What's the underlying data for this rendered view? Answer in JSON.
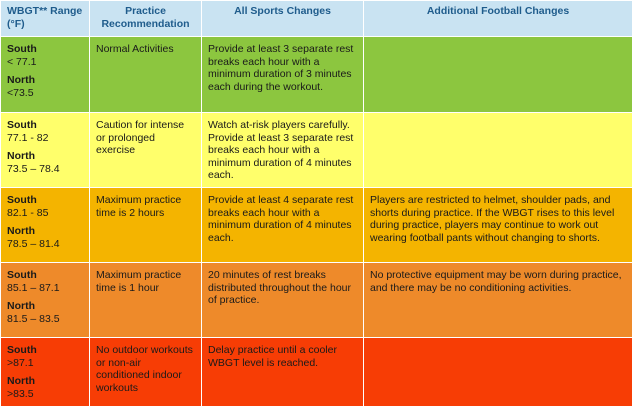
{
  "headers": {
    "range": "WBGT** Range (°F)",
    "practice": "Practice Recommendation",
    "all_sports": "All Sports Changes",
    "football": "Additional Football Changes"
  },
  "colors": {
    "header": "#c9e3f2",
    "header_text": "#1f5c8c",
    "green": "#8cc63f",
    "yellow": "#ffff6b",
    "amber": "#f4b400",
    "orange": "#ee8a2a",
    "red": "#f73d05"
  },
  "rows": [
    {
      "south_label": "South",
      "south_value": "< 77.1",
      "north_label": "North",
      "north_value": "<73.5",
      "practice": "Normal Activities",
      "all_sports": "Provide at least 3 separate rest breaks each hour with a minimum duration of 3 minutes each during the workout.",
      "football": ""
    },
    {
      "south_label": "South",
      "south_value": "77.1 - 82",
      "north_label": "North",
      "north_value": "73.5 – 78.4",
      "practice": "Caution for intense or prolonged exercise",
      "all_sports": "Watch at-risk players carefully. Provide at least 3 separate rest breaks each hour with a minimum duration of 4 minutes each.",
      "football": ""
    },
    {
      "south_label": "South",
      "south_value": "82.1 - 85",
      "north_label": "North",
      "north_value": "78.5 – 81.4",
      "practice": "Maximum practice time is 2 hours",
      "all_sports": "Provide at least 4 separate rest breaks each hour with a minimum duration of 4 minutes each.",
      "football": "Players are restricted to helmet, shoulder pads, and shorts during practice. If the WBGT rises to this level during practice, players may continue to work out wearing football pants without changing to shorts."
    },
    {
      "south_label": "South",
      "south_value": "85.1 – 87.1",
      "north_label": "North",
      "north_value": "81.5 – 83.5",
      "practice": "Maximum practice time is 1 hour",
      "all_sports": "20 minutes of rest breaks distributed throughout the hour of practice.",
      "football": "No protective equipment may be worn during practice, and there may be no conditioning activities."
    },
    {
      "south_label": "South",
      "south_value": ">87.1",
      "north_label": "North",
      "north_value": ">83.5",
      "practice": "No outdoor workouts or non-air conditioned indoor workouts",
      "all_sports": "Delay practice until a cooler WBGT level is reached.",
      "football": ""
    }
  ]
}
